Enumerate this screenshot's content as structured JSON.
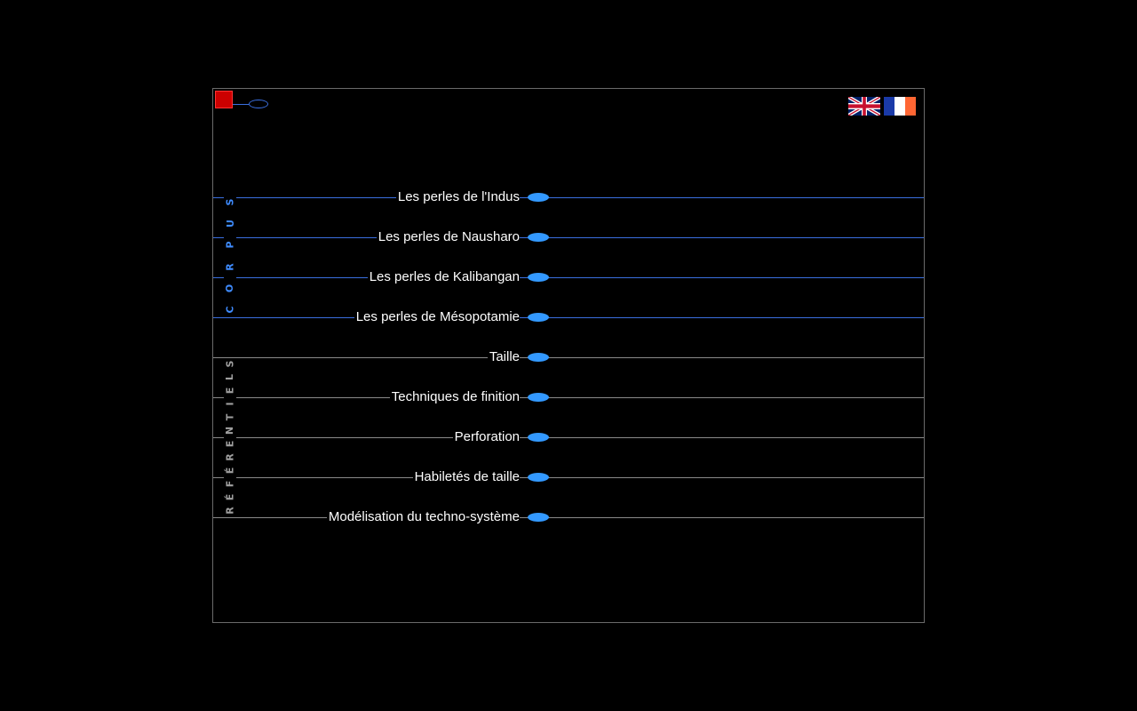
{
  "header": {
    "home_icon": "red-square-icon",
    "nav_icon": "oval-icon",
    "languages": [
      {
        "code": "en",
        "icon": "uk-flag-icon"
      },
      {
        "code": "fr",
        "icon": "france-flag-icon"
      }
    ]
  },
  "sidebar": {
    "corpus_label": "CORPUS",
    "referentiels_label": "RÉFÉRENTIELS"
  },
  "menu": {
    "corpus_items": [
      {
        "label": "Les perles de l'Indus"
      },
      {
        "label": "Les perles de Nausharo"
      },
      {
        "label": "Les perles de Kalibangan"
      },
      {
        "label": "Les perles de Mésopotamie"
      }
    ],
    "referentiel_items": [
      {
        "label": "Taille"
      },
      {
        "label": "Techniques de finition"
      },
      {
        "label": "Perforation"
      },
      {
        "label": "Habiletés de taille"
      },
      {
        "label": "Modélisation du techno-système"
      }
    ]
  },
  "colors": {
    "background": "#000000",
    "corpus_accent": "#3a6fe0",
    "bullet": "#3399ff",
    "referentiel_line": "#8a8a8a",
    "home_square": "#cc0000"
  }
}
